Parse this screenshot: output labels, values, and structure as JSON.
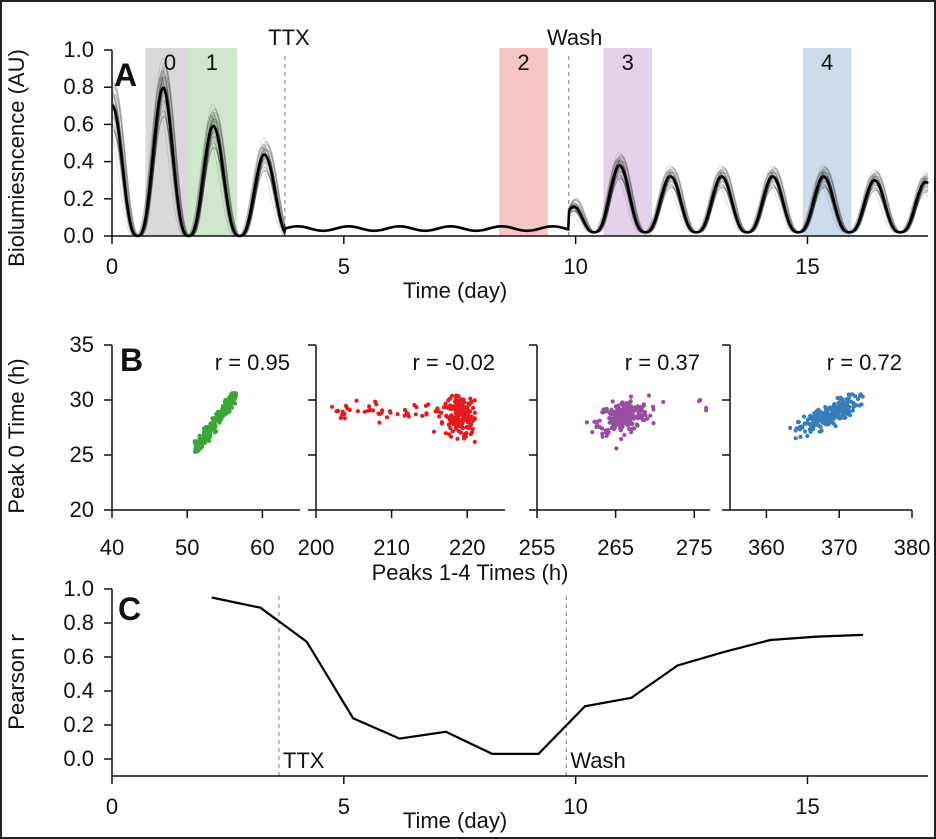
{
  "chart_data": [
    {
      "panel": "A",
      "type": "line",
      "ylabel": "Biolumiesncence (AU)",
      "xlabel": "Time (day)",
      "xlim": [
        0,
        17.6
      ],
      "ylim": [
        0,
        1.0
      ],
      "xticks": [
        0,
        5,
        10,
        15
      ],
      "yticks": [
        "0.0",
        "0.2",
        "0.4",
        "0.6",
        "0.8",
        "1.0"
      ],
      "events": [
        {
          "label": "TTX",
          "x": 3.73
        },
        {
          "label": "Wash",
          "x": 9.85
        }
      ],
      "windows": [
        {
          "label": "0",
          "x0": 0.72,
          "x1": 1.65,
          "color": "#d9d9d9"
        },
        {
          "label": "1",
          "x0": 1.65,
          "x1": 2.7,
          "color": "#cfe8cb"
        },
        {
          "label": "2",
          "x0": 8.35,
          "x1": 9.4,
          "color": "#f6c6c4"
        },
        {
          "label": "3",
          "x0": 10.6,
          "x1": 11.65,
          "color": "#e3d2e8"
        },
        {
          "label": "4",
          "x0": 14.9,
          "x1": 15.95,
          "color": "#cddcec"
        }
      ],
      "period_days": 1.1,
      "peaks": [
        {
          "x": 0.0,
          "y": 0.7
        },
        {
          "x": 1.15,
          "y": 0.8
        },
        {
          "x": 2.25,
          "y": 0.58
        },
        {
          "x": 3.35,
          "y": 0.43
        },
        {
          "x": 10.95,
          "y": 0.36
        },
        {
          "x": 12.05,
          "y": 0.3
        },
        {
          "x": 13.15,
          "y": 0.3
        },
        {
          "x": 14.25,
          "y": 0.3
        },
        {
          "x": 15.35,
          "y": 0.3
        },
        {
          "x": 16.45,
          "y": 0.28
        },
        {
          "x": 17.55,
          "y": 0.27
        }
      ],
      "ttx_baseline": 0.04
    },
    {
      "panel": "B",
      "type": "scatter",
      "ylabel": "Peak 0 Time (h)",
      "xlabel": "Peaks 1-4 Times (h)",
      "ylim": [
        20,
        35
      ],
      "yticks": [
        "20",
        "25",
        "30",
        "35"
      ],
      "subplots": [
        {
          "r_label": "r = 0.95",
          "color": "#3aa636",
          "xlim": [
            40,
            65
          ],
          "xticks": [
            "40",
            "50",
            "60"
          ],
          "xmin_pts": 51.0,
          "xmax_pts": 56.5,
          "ymin_pts": 25.3,
          "ymax_pts": 30.6,
          "r": 0.95
        },
        {
          "r_label": "r = -0.02",
          "color": "#e41a1c",
          "xlim": [
            200,
            225
          ],
          "xticks": [
            "200",
            "210",
            "220"
          ],
          "xmin_pts": 202.0,
          "xmax_pts": 221.0,
          "ymin_pts": 25.2,
          "ymax_pts": 30.5,
          "r": -0.02
        },
        {
          "r_label": "r = 0.37",
          "color": "#984ea3",
          "xlim": [
            255,
            277
          ],
          "xticks": [
            "255",
            "265",
            "275"
          ],
          "xmin_pts": 261.0,
          "xmax_pts": 276.5,
          "ymin_pts": 25.6,
          "ymax_pts": 30.5,
          "r": 0.37
        },
        {
          "r_label": "r = 0.72",
          "color": "#377eb8",
          "xlim": [
            355,
            380
          ],
          "xticks": [
            "360",
            "370",
            "380"
          ],
          "xmin_pts": 362.0,
          "xmax_pts": 375.0,
          "ymin_pts": 25.5,
          "ymax_pts": 30.5,
          "r": 0.72
        }
      ]
    },
    {
      "panel": "C",
      "type": "line",
      "ylabel": "Pearson r",
      "xlabel": "Time (day)",
      "xlim": [
        0,
        17.6
      ],
      "ylim": [
        0,
        1.0
      ],
      "xticks": [
        0,
        5,
        10,
        15
      ],
      "yticks": [
        "0.0",
        "0.2",
        "0.4",
        "0.6",
        "0.8",
        "1.0"
      ],
      "events": [
        {
          "label": "TTX",
          "x": 3.6
        },
        {
          "label": "Wash",
          "x": 9.8
        }
      ],
      "x": [
        2.15,
        3.2,
        4.2,
        5.2,
        6.2,
        7.2,
        8.2,
        9.2,
        10.2,
        11.2,
        12.2,
        13.2,
        14.2,
        15.2,
        16.2
      ],
      "y": [
        0.95,
        0.89,
        0.69,
        0.24,
        0.12,
        0.16,
        0.03,
        0.03,
        0.31,
        0.36,
        0.55,
        0.63,
        0.7,
        0.72,
        0.73
      ]
    }
  ]
}
